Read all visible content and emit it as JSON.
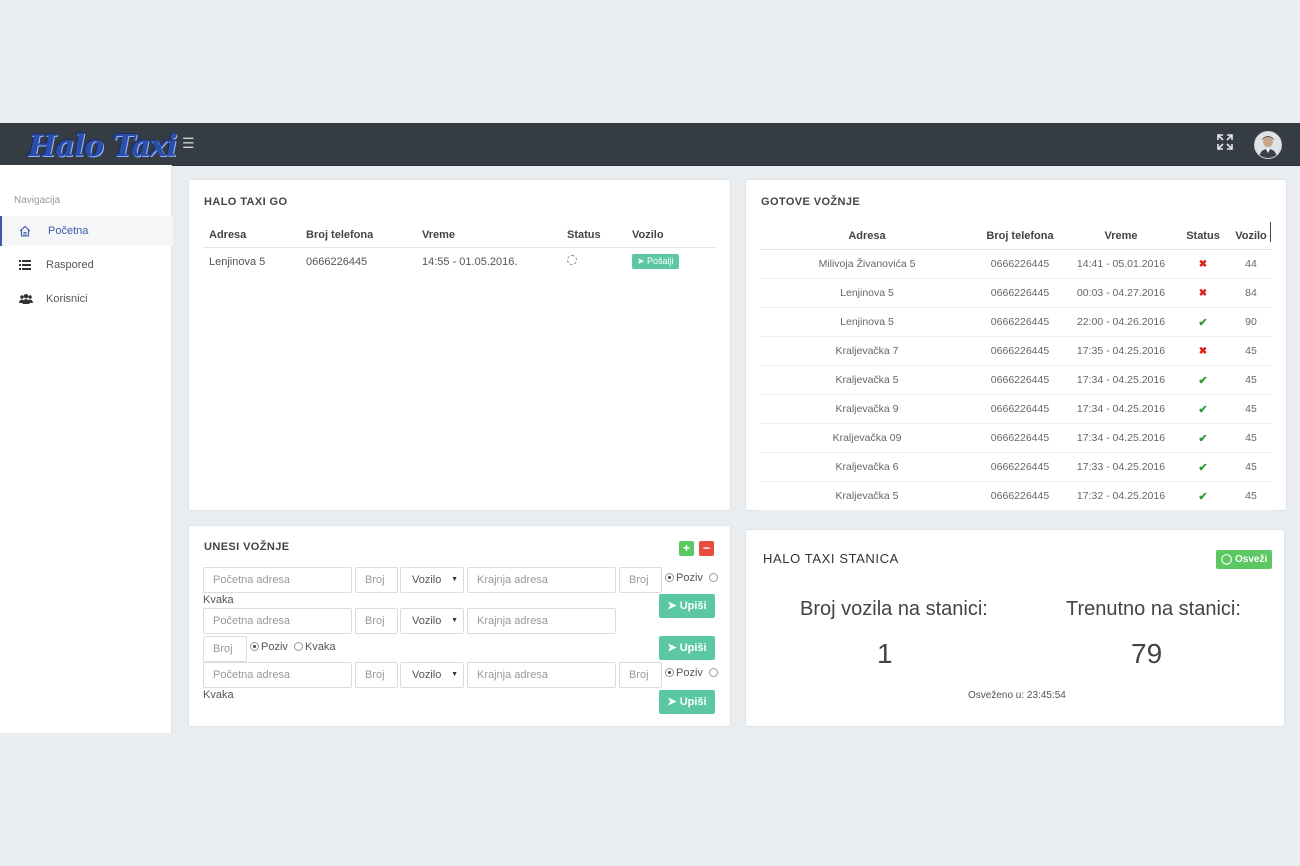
{
  "header": {
    "logo_text": "Halo Taxi",
    "menu_icon": "hamburger-icon",
    "fullscreen_icon": "expand-icon",
    "avatar_icon": "user-avatar"
  },
  "sidebar": {
    "title": "Navigacija",
    "items": [
      {
        "label": "Početna",
        "icon": "home-icon",
        "active": true
      },
      {
        "label": "Raspored",
        "icon": "list-icon",
        "active": false
      },
      {
        "label": "Korisnici",
        "icon": "users-icon",
        "active": false
      }
    ]
  },
  "go_panel": {
    "title": "HALO TAXI GO",
    "columns": [
      "Adresa",
      "Broj telefona",
      "Vreme",
      "Status",
      "Vozilo"
    ],
    "rows": [
      {
        "adresa": "Lenjinova 5",
        "telefon": "0666226445",
        "vreme": "14:55 - 01.05.2016.",
        "status": "spinner-icon",
        "button": "Pošalji"
      }
    ]
  },
  "done_panel": {
    "title": "GOTOVE VOŽNJE",
    "columns": [
      "Adresa",
      "Broj telefona",
      "Vreme",
      "Status",
      "Vozilo"
    ],
    "rows": [
      {
        "adresa": "Milivoja Živanovića 5",
        "telefon": "0666226445",
        "vreme": "14:41 - 05.01.2016",
        "status": "x",
        "vozilo": "44"
      },
      {
        "adresa": "Lenjinova 5",
        "telefon": "0666226445",
        "vreme": "00:03 - 04.27.2016",
        "status": "x",
        "vozilo": "84"
      },
      {
        "adresa": "Lenjinova 5",
        "telefon": "0666226445",
        "vreme": "22:00 - 04.26.2016",
        "status": "ok",
        "vozilo": "90"
      },
      {
        "adresa": "Kraljevačka 7",
        "telefon": "0666226445",
        "vreme": "17:35 - 04.25.2016",
        "status": "x",
        "vozilo": "45"
      },
      {
        "adresa": "Kraljevačka 5",
        "telefon": "0666226445",
        "vreme": "17:34 - 04.25.2016",
        "status": "ok",
        "vozilo": "45"
      },
      {
        "adresa": "Kraljevačka 9",
        "telefon": "0666226445",
        "vreme": "17:34 - 04.25.2016",
        "status": "ok",
        "vozilo": "45"
      },
      {
        "adresa": "Kraljevačka 09",
        "telefon": "0666226445",
        "vreme": "17:34 - 04.25.2016",
        "status": "ok",
        "vozilo": "45"
      },
      {
        "adresa": "Kraljevačka 6",
        "telefon": "0666226445",
        "vreme": "17:33 - 04.25.2016",
        "status": "ok",
        "vozilo": "45"
      },
      {
        "adresa": "Kraljevačka 5",
        "telefon": "0666226445",
        "vreme": "17:32 - 04.25.2016",
        "status": "ok",
        "vozilo": "45"
      }
    ]
  },
  "entry_panel": {
    "title": "UNESI VOŽNJE",
    "add_label": "+",
    "remove_label": "−",
    "start_placeholder": "Početna adresa",
    "number_placeholder": "Broj",
    "vehicle_label": "Vozilo",
    "end_placeholder": "Krajnja adresa",
    "radio_call": "Poziv",
    "radio_hook": "Kvaka",
    "submit_label": "Upiši"
  },
  "station_panel": {
    "title": "HALO TAXI STANICA",
    "refresh_label": "Osveži",
    "vehicles_label": "Broj vozila na stanici:",
    "vehicles_value": "1",
    "current_label": "Trenutno na stanici:",
    "current_value": "79",
    "refreshed_text": "Osveženo u: 23:45:54"
  },
  "colors": {
    "topbar": "#353c44",
    "accent": "#3c5ba8",
    "teal": "#5bc8a3",
    "green": "#5bc863",
    "red": "#e84c3d"
  }
}
